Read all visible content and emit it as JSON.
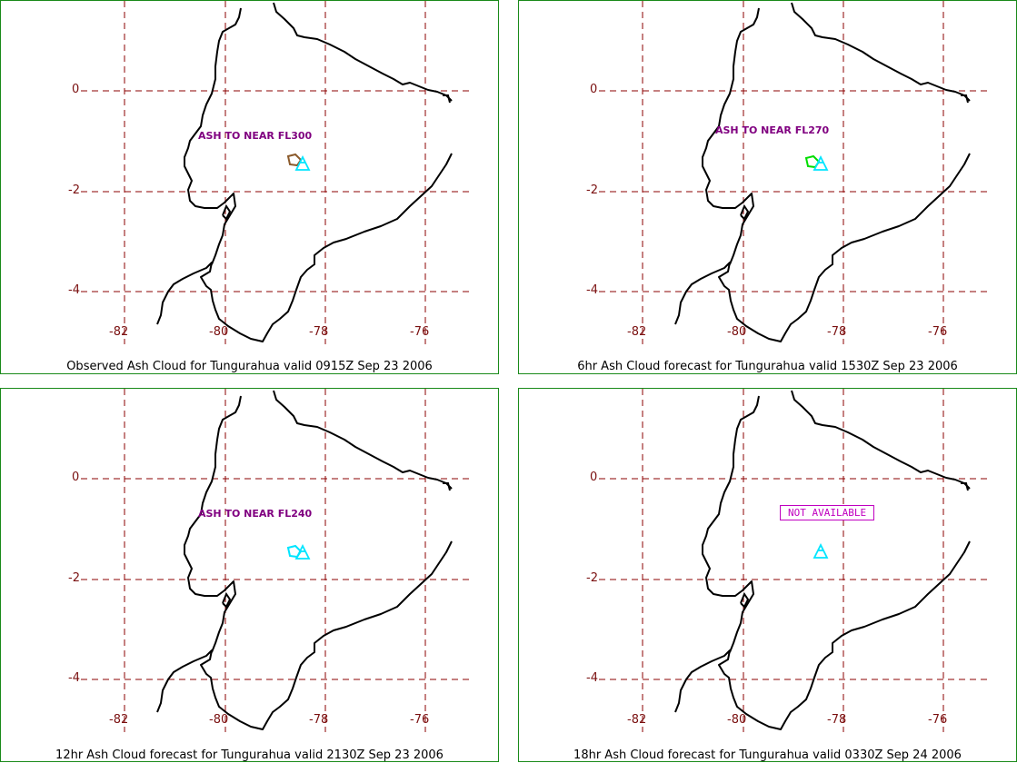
{
  "panels": [
    {
      "caption": "Observed Ash Cloud for Tungurahua valid 0915Z Sep 23 2006",
      "label": "ASH TO NEAR FL300",
      "label_style": "text",
      "cloud_color": "#8b5a2b",
      "volcano_color": "#00e5ff"
    },
    {
      "caption": "6hr Ash Cloud forecast for Tungurahua valid 1530Z Sep 23 2006",
      "label": "ASH TO NEAR FL270",
      "label_style": "text",
      "cloud_color": "#00dd00",
      "volcano_color": "#00e5ff"
    },
    {
      "caption": "12hr Ash Cloud forecast for Tungurahua valid 2130Z Sep 23 2006",
      "label": "ASH TO NEAR FL240",
      "label_style": "text",
      "cloud_color": "#00e5ff",
      "volcano_color": "#00e5ff"
    },
    {
      "caption": "18hr Ash Cloud forecast for Tungurahua valid 0330Z Sep 24 2006",
      "label": "NOT AVAILABLE",
      "label_style": "box",
      "cloud_color": null,
      "volcano_color": "#00e5ff"
    }
  ],
  "axes": {
    "lon_ticks": [
      "-82",
      "-80",
      "-78",
      "-76"
    ],
    "lat_ticks": [
      "0",
      "-2",
      "-4"
    ]
  },
  "colors": {
    "grid": "#8b0000",
    "coast": "#000000",
    "border": "#1a8a1a"
  }
}
